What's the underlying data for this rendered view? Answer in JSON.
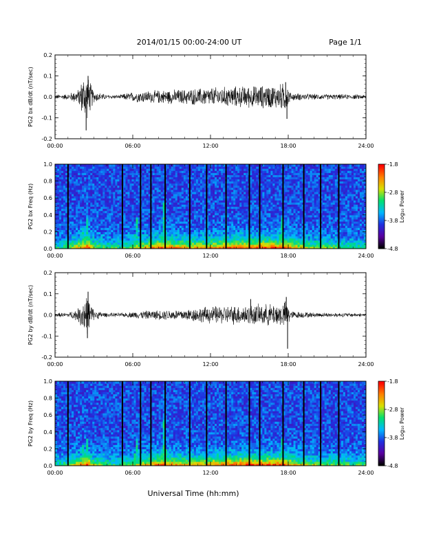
{
  "header": {
    "title": "2014/01/15  00:00-24:00 UT",
    "page": "Page 1/1"
  },
  "xlabel": "Universal Time (hh:mm)",
  "colorbar": {
    "label": "Log₁₀ Power",
    "ticks": [
      "-1.8",
      "-2.8",
      "-3.8",
      "-4.8"
    ],
    "range": [
      -4.8,
      -1.8
    ],
    "colors": [
      "#000000",
      "#5a00a0",
      "#2030e0",
      "#00b8ff",
      "#00e070",
      "#d8e000",
      "#ff8000",
      "#ff0000"
    ]
  },
  "chart_data": [
    {
      "type": "line",
      "ylabel": "PG2 bx dB/dt (nT/sec)",
      "xlim": [
        0,
        24
      ],
      "xticks": [
        "00:00",
        "06:00",
        "12:00",
        "18:00",
        "24:00"
      ],
      "ylim": [
        -0.2,
        0.2
      ],
      "yticks": [
        "0.2",
        "0.1",
        "0.0",
        "-0.1",
        "-0.2"
      ],
      "envelope": [
        {
          "x": 0,
          "amp": 0.012
        },
        {
          "x": 1,
          "amp": 0.015
        },
        {
          "x": 1.8,
          "amp": 0.04
        },
        {
          "x": 2.3,
          "amp": 0.13
        },
        {
          "x": 2.6,
          "amp": 0.1
        },
        {
          "x": 3.0,
          "amp": 0.03
        },
        {
          "x": 4,
          "amp": 0.012
        },
        {
          "x": 5,
          "amp": 0.01
        },
        {
          "x": 5.5,
          "amp": 0.02
        },
        {
          "x": 6.5,
          "amp": 0.03
        },
        {
          "x": 8,
          "amp": 0.035
        },
        {
          "x": 10,
          "amp": 0.04
        },
        {
          "x": 12,
          "amp": 0.05
        },
        {
          "x": 14,
          "amp": 0.055
        },
        {
          "x": 16,
          "amp": 0.06
        },
        {
          "x": 17.3,
          "amp": 0.065
        },
        {
          "x": 17.8,
          "amp": 0.08
        },
        {
          "x": 18.2,
          "amp": 0.02
        },
        {
          "x": 20,
          "amp": 0.015
        },
        {
          "x": 24,
          "amp": 0.012
        }
      ],
      "spikes": [
        {
          "x": 2.4,
          "y": -0.16
        },
        {
          "x": 2.55,
          "y": 0.1
        },
        {
          "x": 17.9,
          "y": -0.105
        },
        {
          "x": 17.8,
          "y": 0.07
        }
      ]
    },
    {
      "type": "heatmap",
      "ylabel": "PG2 bx Freq (Hz)",
      "xlim": [
        0,
        24
      ],
      "xticks": [
        "00:00",
        "06:00",
        "12:00",
        "18:00",
        "24:00"
      ],
      "ylim": [
        0,
        1.0
      ],
      "yticks": [
        "1.0",
        "0.8",
        "0.6",
        "0.4",
        "0.2",
        "0.0"
      ],
      "gaps": [
        1.0,
        5.2,
        6.6,
        7.4,
        8.5,
        10.4,
        11.7,
        13.2,
        15.0,
        15.8,
        17.6,
        19.2,
        20.5,
        21.9
      ],
      "activity": [
        {
          "x": 0,
          "level": 0.25
        },
        {
          "x": 1,
          "level": 0.35
        },
        {
          "x": 2,
          "level": 0.6
        },
        {
          "x": 2.5,
          "level": 0.75
        },
        {
          "x": 3,
          "level": 0.4
        },
        {
          "x": 5,
          "level": 0.3
        },
        {
          "x": 6.5,
          "level": 0.5
        },
        {
          "x": 8.3,
          "level": 0.7
        },
        {
          "x": 10,
          "level": 0.55
        },
        {
          "x": 12,
          "level": 0.6
        },
        {
          "x": 14,
          "level": 0.7
        },
        {
          "x": 16,
          "level": 0.72
        },
        {
          "x": 17.8,
          "level": 0.7
        },
        {
          "x": 19,
          "level": 0.45
        },
        {
          "x": 22,
          "level": 0.35
        },
        {
          "x": 24,
          "level": 0.3
        }
      ],
      "bursts": [
        {
          "x": 2.2,
          "f": 0.3
        },
        {
          "x": 2.5,
          "f": 0.4
        },
        {
          "x": 6.3,
          "f": 0.4
        },
        {
          "x": 8.4,
          "f": 0.55
        },
        {
          "x": 12.5,
          "f": 0.2
        },
        {
          "x": 17.5,
          "f": 0.4
        }
      ]
    },
    {
      "type": "line",
      "ylabel": "PG2 by dB/dt (nT/sec)",
      "xlim": [
        0,
        24
      ],
      "xticks": [
        "00:00",
        "06:00",
        "12:00",
        "18:00",
        "24:00"
      ],
      "ylim": [
        -0.2,
        0.2
      ],
      "yticks": [
        "0.2",
        "0.1",
        "0.0",
        "-0.1",
        "-0.2"
      ],
      "envelope": [
        {
          "x": 0,
          "amp": 0.01
        },
        {
          "x": 1,
          "amp": 0.012
        },
        {
          "x": 1.8,
          "amp": 0.035
        },
        {
          "x": 2.3,
          "amp": 0.11
        },
        {
          "x": 2.6,
          "amp": 0.09
        },
        {
          "x": 3.0,
          "amp": 0.025
        },
        {
          "x": 4,
          "amp": 0.01
        },
        {
          "x": 5.5,
          "amp": 0.012
        },
        {
          "x": 6.5,
          "amp": 0.02
        },
        {
          "x": 8,
          "amp": 0.025
        },
        {
          "x": 10,
          "amp": 0.03
        },
        {
          "x": 12,
          "amp": 0.045
        },
        {
          "x": 14,
          "amp": 0.05
        },
        {
          "x": 16,
          "amp": 0.055
        },
        {
          "x": 17.5,
          "amp": 0.06
        },
        {
          "x": 17.9,
          "amp": 0.075
        },
        {
          "x": 18.2,
          "amp": 0.02
        },
        {
          "x": 20,
          "amp": 0.012
        },
        {
          "x": 24,
          "amp": 0.01
        }
      ],
      "spikes": [
        {
          "x": 2.55,
          "y": 0.11
        },
        {
          "x": 2.5,
          "y": -0.11
        },
        {
          "x": 17.95,
          "y": -0.16
        },
        {
          "x": 17.85,
          "y": 0.085
        },
        {
          "x": 15.1,
          "y": 0.075
        }
      ]
    },
    {
      "type": "heatmap",
      "ylabel": "PG2 by Freq (Hz)",
      "xlim": [
        0,
        24
      ],
      "xticks": [
        "00:00",
        "06:00",
        "12:00",
        "18:00",
        "24:00"
      ],
      "ylim": [
        0,
        1.0
      ],
      "yticks": [
        "1.0",
        "0.8",
        "0.6",
        "0.4",
        "0.2",
        "0.0"
      ],
      "gaps": [
        1.0,
        5.2,
        6.6,
        7.4,
        8.5,
        10.4,
        11.7,
        13.2,
        15.0,
        15.8,
        17.6,
        19.2,
        20.5,
        21.9
      ],
      "activity": [
        {
          "x": 0,
          "level": 0.25
        },
        {
          "x": 1,
          "level": 0.35
        },
        {
          "x": 2,
          "level": 0.6
        },
        {
          "x": 2.5,
          "level": 0.75
        },
        {
          "x": 3,
          "level": 0.4
        },
        {
          "x": 5,
          "level": 0.3
        },
        {
          "x": 6.5,
          "level": 0.45
        },
        {
          "x": 8.3,
          "level": 0.7
        },
        {
          "x": 10,
          "level": 0.55
        },
        {
          "x": 12,
          "level": 0.6
        },
        {
          "x": 14,
          "level": 0.7
        },
        {
          "x": 16,
          "level": 0.72
        },
        {
          "x": 17.8,
          "level": 0.7
        },
        {
          "x": 19,
          "level": 0.45
        },
        {
          "x": 22,
          "level": 0.35
        },
        {
          "x": 24,
          "level": 0.3
        }
      ],
      "bursts": [
        {
          "x": 2.2,
          "f": 0.3
        },
        {
          "x": 2.5,
          "f": 0.35
        },
        {
          "x": 6.3,
          "f": 0.35
        },
        {
          "x": 8.4,
          "f": 0.55
        },
        {
          "x": 12.5,
          "f": 0.2
        },
        {
          "x": 17.5,
          "f": 0.35
        }
      ]
    }
  ]
}
